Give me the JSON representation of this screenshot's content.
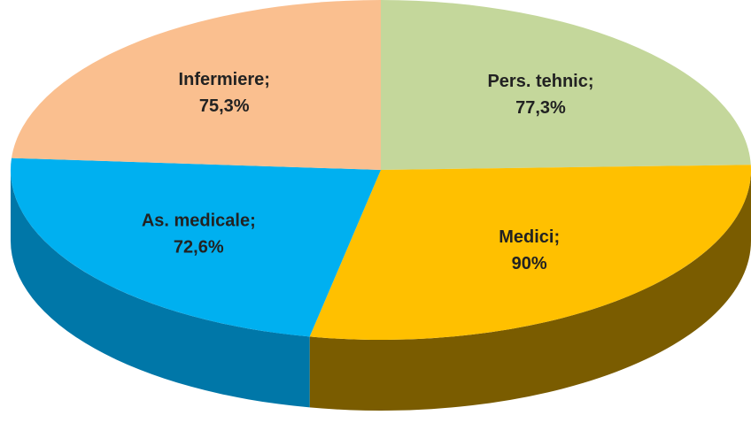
{
  "chart_data": {
    "type": "pie",
    "categories": [
      "Pers. tehnic;",
      "Medici;",
      "As. medicale;",
      "Infermiere;"
    ],
    "values": [
      77.3,
      90,
      72.6,
      75.3
    ],
    "value_labels": [
      "77,3%",
      "90%",
      "72,6%",
      "75,3%"
    ],
    "colors": [
      "#c4d79b",
      "#ffc000",
      "#00b0f0",
      "#fabf8f"
    ],
    "side_colors": [
      "#8c9c66",
      "#7a5c00",
      "#0077a8",
      "#b88a60"
    ]
  }
}
